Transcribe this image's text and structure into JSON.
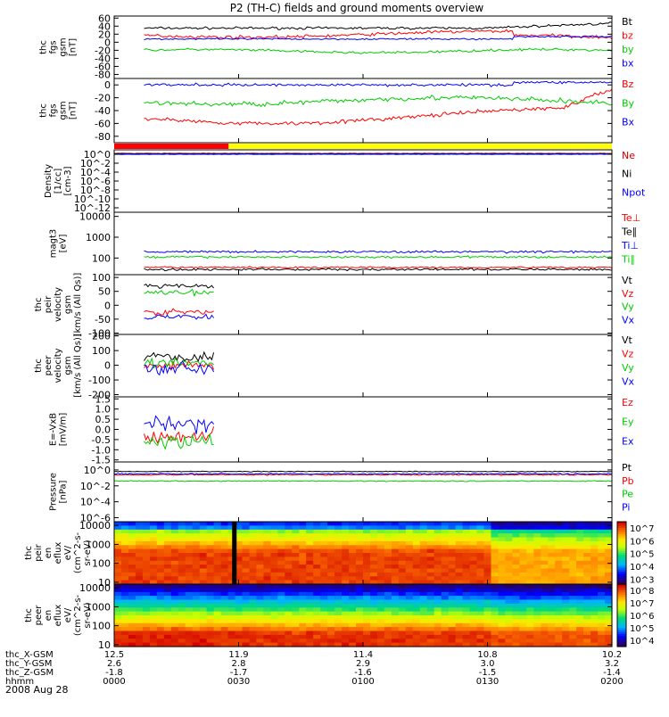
{
  "chart_data": {
    "type": "line",
    "title": "P2 (TH-C) fields and ground moments overview",
    "date_label": "2008 Aug 28",
    "x_axis": {
      "row_labels": [
        "thc_X-GSM",
        "thc_Y-GSM",
        "thc_Z-GSM",
        "hhmm"
      ],
      "ticks": [
        {
          "x_gsm": "12.5",
          "y_gsm": "2.6",
          "z_gsm": "-1.8",
          "hhmm": "0000"
        },
        {
          "x_gsm": "11.9",
          "y_gsm": "2.8",
          "z_gsm": "-1.7",
          "hhmm": "0030"
        },
        {
          "x_gsm": "11.4",
          "y_gsm": "2.9",
          "z_gsm": "-1.6",
          "hhmm": "0100"
        },
        {
          "x_gsm": "10.8",
          "y_gsm": "3.0",
          "z_gsm": "-1.5",
          "hhmm": "0130"
        },
        {
          "x_gsm": "10.2",
          "y_gsm": "3.2",
          "z_gsm": "-1.4",
          "hhmm": "0200"
        }
      ]
    },
    "panels": [
      {
        "ylabel": [
          "thc",
          "fgs",
          "gsm",
          "[nT]"
        ],
        "scale": "linear",
        "ylim": [
          -90,
          65
        ],
        "ticks": [
          "60",
          "40",
          "20",
          "0",
          "-20",
          "-40",
          "-60",
          "-80"
        ],
        "tick_values": [
          60,
          40,
          20,
          0,
          -20,
          -40,
          -60,
          -80
        ],
        "series": [
          {
            "name": "Bt",
            "color": "#000000"
          },
          {
            "name": "bz",
            "color": "#ff0000"
          },
          {
            "name": "by",
            "color": "#00cc00"
          },
          {
            "name": "bx",
            "color": "#0000ff"
          }
        ]
      },
      {
        "ylabel": [
          "thc",
          "fgs",
          "gsm",
          "[nT]"
        ],
        "scale": "linear",
        "ylim": [
          -90,
          10
        ],
        "ticks": [
          "0",
          "-20",
          "-40",
          "-60",
          "-80"
        ],
        "tick_values": [
          0,
          -20,
          -40,
          -60,
          -80
        ],
        "series": [
          {
            "name": "Bz",
            "color": "#ff0000"
          },
          {
            "name": "By",
            "color": "#00cc00"
          },
          {
            "name": "Bx",
            "color": "#0000ff"
          }
        ]
      },
      {
        "ylabel": [
          "Density",
          "[1/cc]",
          "[cm-3]"
        ],
        "scale": "log",
        "ylim": [
          -13,
          1
        ],
        "ticks": [
          "10^0",
          "10^-2",
          "10^-4",
          "10^-6",
          "10^-8",
          "10^-10",
          "10^-12"
        ],
        "tick_values": [
          0,
          -2,
          -4,
          -6,
          -8,
          -10,
          -12
        ],
        "series": [
          {
            "name": "Ne",
            "color": "#cc0000"
          },
          {
            "name": "Ni",
            "color": "#000000"
          },
          {
            "name": "Npot",
            "color": "#0000ff"
          }
        ]
      },
      {
        "ylabel": [
          "magt3",
          "[eV]"
        ],
        "scale": "log",
        "ylim": [
          1.2,
          4.2
        ],
        "ticks": [
          "10000",
          "1000",
          "100"
        ],
        "tick_values": [
          4,
          3,
          2
        ],
        "series": [
          {
            "name": "Te⊥",
            "color": "#ff0000"
          },
          {
            "name": "Te∥",
            "color": "#000000"
          },
          {
            "name": "Ti⊥",
            "color": "#0000ff"
          },
          {
            "name": "Ti∥",
            "color": "#00cc00"
          }
        ]
      },
      {
        "ylabel": [
          "thc",
          "peir",
          "velocity",
          "gsm",
          "[km/s (All Qs)]"
        ],
        "scale": "linear",
        "ylim": [
          -105,
          110
        ],
        "ticks": [
          "100",
          "50",
          "0",
          "-50",
          "-100"
        ],
        "tick_values": [
          100,
          50,
          0,
          -50,
          -100
        ],
        "series": [
          {
            "name": "Vt",
            "color": "#000000"
          },
          {
            "name": "Vz",
            "color": "#ff0000"
          },
          {
            "name": "Vy",
            "color": "#00cc00"
          },
          {
            "name": "Vx",
            "color": "#0000ff"
          }
        ]
      },
      {
        "ylabel": [
          "thc",
          "peer",
          "velocity",
          "gsm",
          "[km/s (All Qs)]"
        ],
        "scale": "linear",
        "ylim": [
          -215,
          210
        ],
        "ticks": [
          "200",
          "100",
          "0",
          "-100",
          "-200"
        ],
        "tick_values": [
          200,
          100,
          0,
          -100,
          -200
        ],
        "series": [
          {
            "name": "Vt",
            "color": "#000000"
          },
          {
            "name": "Vz",
            "color": "#ff0000"
          },
          {
            "name": "Vy",
            "color": "#00cc00"
          },
          {
            "name": "Vx",
            "color": "#0000ff"
          }
        ]
      },
      {
        "ylabel": [
          "E=-VxB",
          "[mV/m]"
        ],
        "scale": "linear",
        "ylim": [
          -1.6,
          1.6
        ],
        "ticks": [
          "1.5",
          "1.0",
          "0.5",
          "0.0",
          "-0.5",
          "-1.0",
          "-1.5"
        ],
        "tick_values": [
          1.5,
          1.0,
          0.5,
          0.0,
          -0.5,
          -1.0,
          -1.5
        ],
        "series": [
          {
            "name": "Ez",
            "color": "#ff0000"
          },
          {
            "name": "Ey",
            "color": "#00cc00"
          },
          {
            "name": "Ex",
            "color": "#0000ff"
          }
        ]
      },
      {
        "ylabel": [
          "Pressure",
          "[nPa]"
        ],
        "scale": "log",
        "ylim": [
          -6.5,
          1
        ],
        "ticks": [
          "10^0",
          "10^-2",
          "10^-4",
          "10^-6"
        ],
        "tick_values": [
          0,
          -2,
          -4,
          -6
        ],
        "series": [
          {
            "name": "Pt",
            "color": "#000000"
          },
          {
            "name": "Pb",
            "color": "#ff0000"
          },
          {
            "name": "Pe",
            "color": "#00cc00"
          },
          {
            "name": "Pi",
            "color": "#0000ff"
          }
        ]
      },
      {
        "type": "heatmap",
        "ylabel": [
          "thc",
          "peir",
          "en",
          "eflux",
          "eV/",
          "(cm^2-s-",
          "sr-eV)"
        ],
        "scale": "log",
        "ylim": [
          0.9,
          4.2
        ],
        "ticks": [
          "10000",
          "1000",
          "100",
          "10"
        ],
        "tick_values": [
          4,
          3,
          2,
          1
        ],
        "colorbar": {
          "ticks": [
            "10^7",
            "10^6",
            "10^5",
            "10^4",
            "10^3"
          ],
          "tick_values": [
            7,
            6,
            5,
            4,
            3
          ],
          "range": [
            2.6,
            7.5
          ]
        }
      },
      {
        "type": "heatmap",
        "ylabel": [
          "thc",
          "peer",
          "en",
          "eflux",
          "eV/",
          "(cm^2-s-",
          "sr-eV)"
        ],
        "scale": "log",
        "ylim": [
          0.9,
          4.2
        ],
        "ticks": [
          "10000",
          "1000",
          "100",
          "10"
        ],
        "tick_values": [
          4,
          3,
          2,
          1
        ],
        "colorbar": {
          "ticks": [
            "10^8",
            "10^7",
            "10^6",
            "10^5",
            "10^4"
          ],
          "tick_values": [
            8,
            7,
            6,
            5,
            4
          ],
          "range": [
            3.5,
            8.5
          ]
        }
      }
    ]
  }
}
